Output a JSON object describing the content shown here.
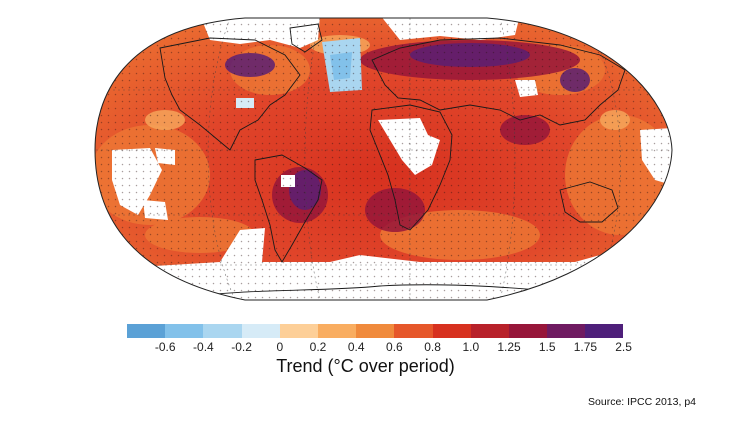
{
  "map": {
    "projection": "robinson",
    "grid": "dotted",
    "stippling": "dots",
    "no_data_color": "#ffffff"
  },
  "legend": {
    "title": "Trend (°C over period)",
    "tick_labels": [
      "-0.6",
      "-0.4",
      "-0.2",
      "0",
      "0.2",
      "0.4",
      "0.6",
      "0.8",
      "1.0",
      "1.25",
      "1.5",
      "1.75",
      "2.5"
    ],
    "colors": [
      "#5ba1d6",
      "#82c1ea",
      "#aad6f0",
      "#d6ebf7",
      "#fdcf98",
      "#f9ad60",
      "#f08a3c",
      "#e6572a",
      "#d7311f",
      "#b8212a",
      "#97163a",
      "#6f1b61",
      "#4e1f7a"
    ]
  },
  "source": {
    "text": "Source: IPCC 2013, p4"
  }
}
